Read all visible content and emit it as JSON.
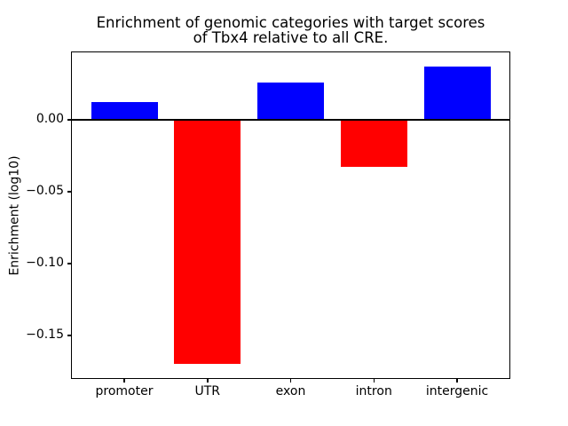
{
  "figure": {
    "title_line1": "Enrichment of genomic categories with target scores",
    "title_line2": "of Tbx4 relative to all CRE."
  },
  "chart_data": {
    "type": "bar",
    "title": "Enrichment of genomic categories with target scores\nof Tbx4 relative to all CRE.",
    "categories": [
      "promoter",
      "UTR",
      "exon",
      "intron",
      "intergenic"
    ],
    "values": [
      0.012,
      -0.17,
      0.026,
      -0.033,
      0.037
    ],
    "bar_colors": [
      "#0000ff",
      "#ff0000",
      "#0000ff",
      "#ff0000",
      "#0000ff"
    ],
    "positive_color": "#0000ff",
    "negative_color": "#ff0000",
    "xlabel": "",
    "ylabel": "Enrichment (log10)",
    "ylim": [
      -0.1804,
      0.0474
    ],
    "yticks": [
      0,
      -0.05,
      -0.1,
      -0.15
    ],
    "ytick_labels": [
      "0.00",
      "−0.05",
      "−0.10",
      "−0.15"
    ],
    "bar_width_fraction": 0.8,
    "x_margin_units": 0.64,
    "grid": false,
    "legend_position": null,
    "zero_line": true,
    "axis_color": "#000000",
    "background_color": "#ffffff"
  }
}
